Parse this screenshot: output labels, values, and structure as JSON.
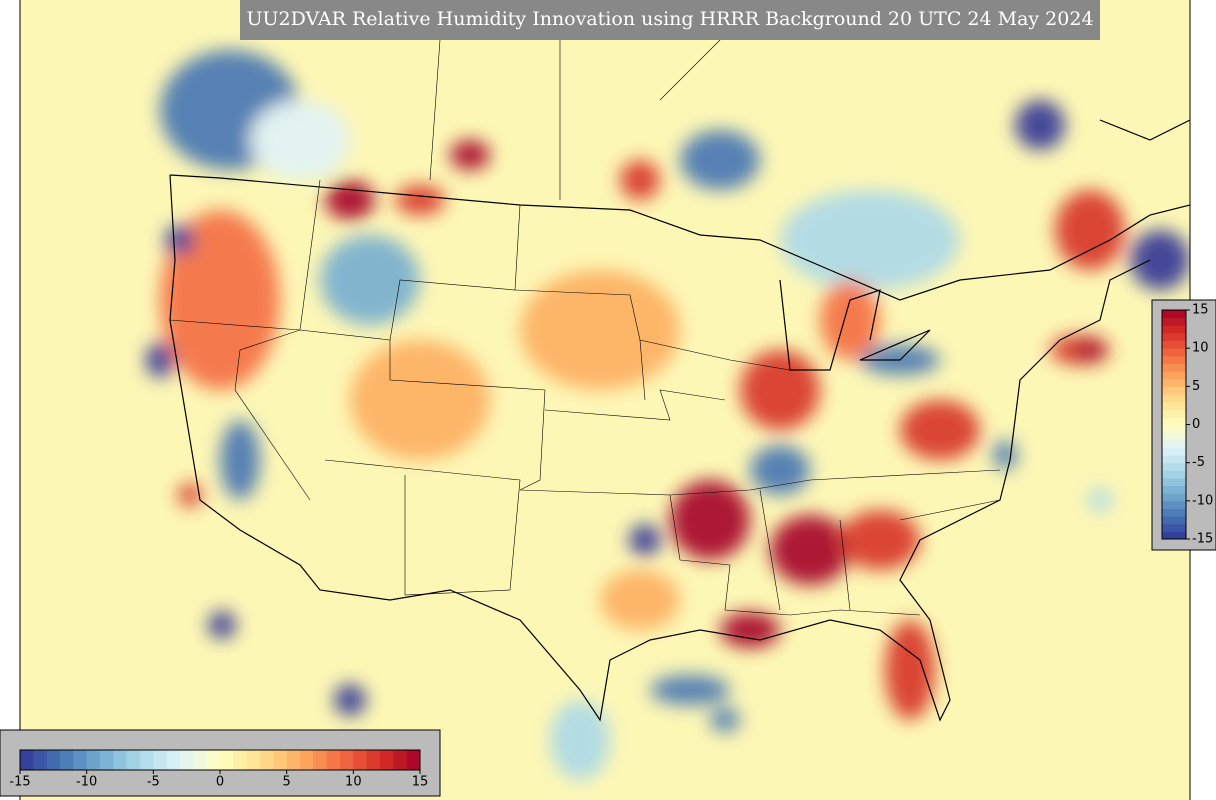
{
  "title": "UU2DVAR Relative Humidity Innovation using HRRR Background 20 UTC 24 May 2024",
  "vertical_colorbar": {
    "lim": [
      -15,
      15
    ],
    "ticks": [
      15,
      10,
      5,
      0,
      -5,
      -10,
      -15
    ]
  },
  "horizontal_colorbar": {
    "lim": [
      -15,
      15
    ],
    "ticks": [
      -15,
      -10,
      -5,
      0,
      5,
      10,
      15
    ]
  },
  "colormap": [
    "#313695",
    "#4575b4",
    "#74add1",
    "#abd9e9",
    "#e0f3f8",
    "#ffffbf",
    "#fee090",
    "#fdae61",
    "#f46d43",
    "#d73027",
    "#a50026"
  ]
}
